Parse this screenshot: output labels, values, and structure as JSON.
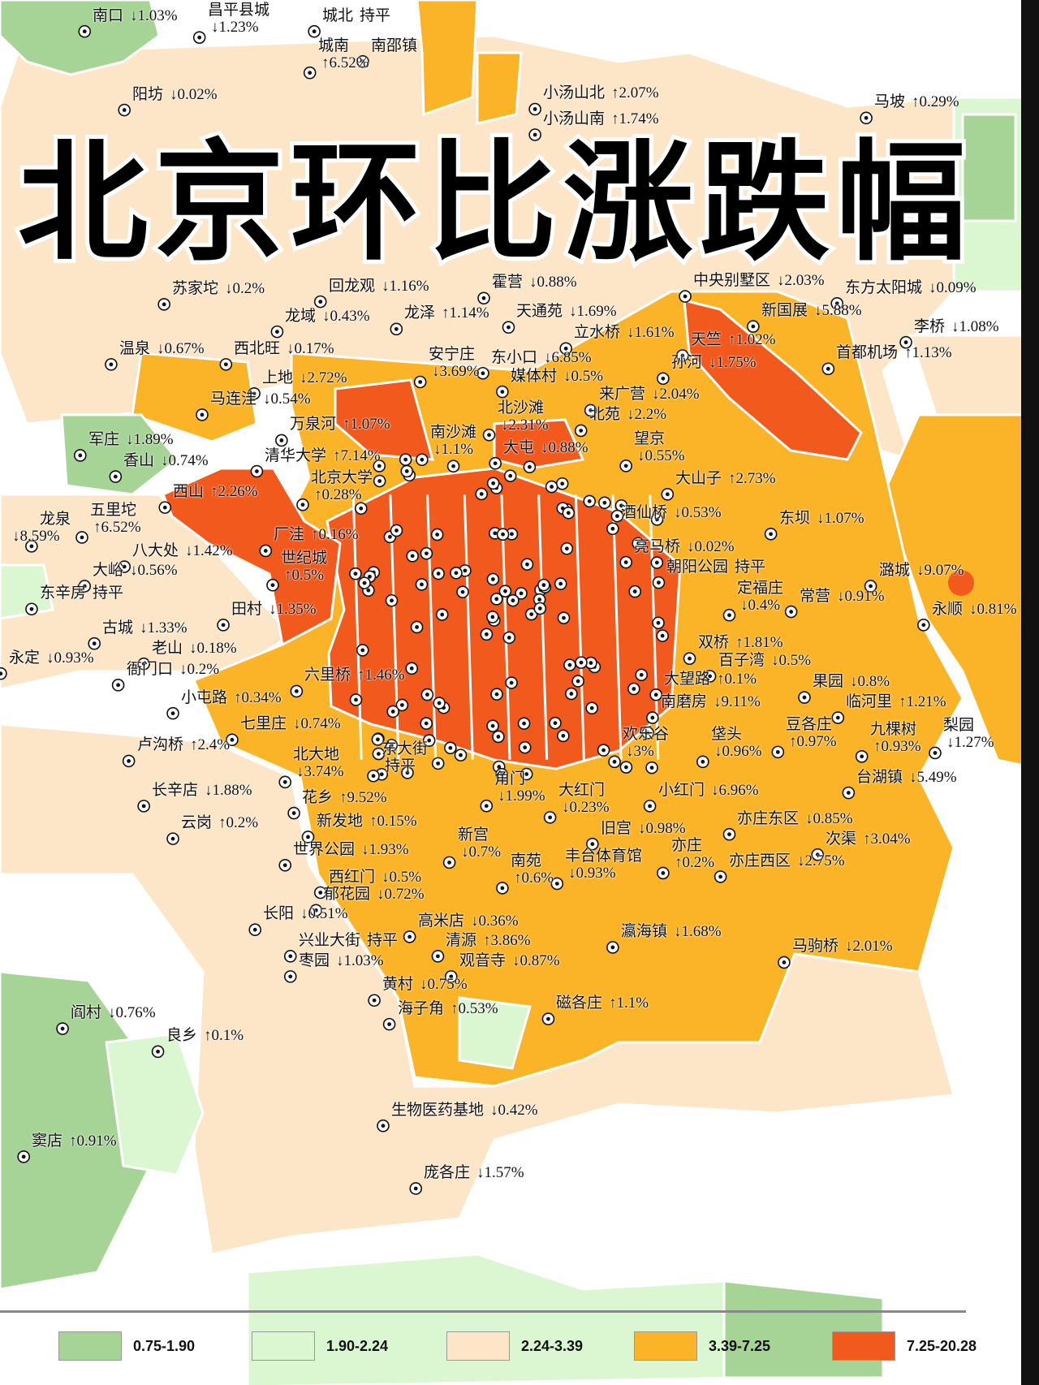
{
  "title": "北京环比涨跌幅",
  "colors": {
    "band1": "#a6d496",
    "band2": "#daf7d2",
    "band3": "#fde6c8",
    "band4": "#fbb428",
    "band5": "#f2591c",
    "marker": "#111111"
  },
  "legend": [
    {
      "label": "0.75-1.90",
      "color": "#a6d496"
    },
    {
      "label": "1.90-2.24",
      "color": "#daf7d2"
    },
    {
      "label": "2.24-3.39",
      "color": "#fde6c8"
    },
    {
      "label": "3.39-7.25",
      "color": "#fbb428"
    },
    {
      "label": "7.25-20.28",
      "color": "#f2591c"
    }
  ],
  "labels": [
    {
      "name": "南口",
      "change": "↓1.03%"
    },
    {
      "name": "昌平县城",
      "change": "↓1.23%"
    },
    {
      "name": "城北",
      "change": "持平"
    },
    {
      "name": "城南",
      "change": "↑6.52%"
    },
    {
      "name": "南邵镇",
      "change": ""
    },
    {
      "name": "阳坊",
      "change": "↓0.02%"
    },
    {
      "name": "小汤山北",
      "change": "↑2.07%"
    },
    {
      "name": "小汤山南",
      "change": "↑1.74%"
    },
    {
      "name": "马坡",
      "change": "↑0.29%"
    },
    {
      "name": "中央别墅区",
      "change": "↓2.03%"
    },
    {
      "name": "苏家坨",
      "change": "↓0.2%"
    },
    {
      "name": "回龙观",
      "change": "↓1.16%"
    },
    {
      "name": "霍营",
      "change": "↓0.88%"
    },
    {
      "name": "东方太阳城",
      "change": "↓0.09%"
    },
    {
      "name": "龙域",
      "change": "↓0.43%"
    },
    {
      "name": "龙泽",
      "change": "↑1.14%"
    },
    {
      "name": "天通苑",
      "change": "↓1.69%"
    },
    {
      "name": "新国展",
      "change": "↓5.88%"
    },
    {
      "name": "李桥",
      "change": "↓1.08%"
    },
    {
      "name": "立水桥",
      "change": "↓1.61%"
    },
    {
      "name": "天竺",
      "change": "↑1.02%"
    },
    {
      "name": "温泉",
      "change": "↓0.67%"
    },
    {
      "name": "西北旺",
      "change": "↓0.17%"
    },
    {
      "name": "安宁庄",
      "change": "↓3.69%"
    },
    {
      "name": "东小口",
      "change": "↓6.85%"
    },
    {
      "name": "首都机场",
      "change": "↑1.13%"
    },
    {
      "name": "孙河",
      "change": "↓1.75%"
    },
    {
      "name": "上地",
      "change": "↓2.72%"
    },
    {
      "name": "媒体村",
      "change": "↓0.5%"
    },
    {
      "name": "马连洼",
      "change": "↓0.54%"
    },
    {
      "name": "来广营",
      "change": "↓2.04%"
    },
    {
      "name": "北沙滩",
      "change": "↓2.31%"
    },
    {
      "name": "北苑",
      "change": "↓2.2%"
    },
    {
      "name": "万泉河",
      "change": "↑1.07%"
    },
    {
      "name": "南沙滩",
      "change": "↓1.1%"
    },
    {
      "name": "望京",
      "change": "↓0.55%"
    },
    {
      "name": "军庄",
      "change": "↓1.89%"
    },
    {
      "name": "大屯",
      "change": "↓0.88%"
    },
    {
      "name": "清华大学",
      "change": "↑7.14%"
    },
    {
      "name": "香山",
      "change": "↓0.74%"
    },
    {
      "name": "北京大学",
      "change": "↑0.28%"
    },
    {
      "name": "大山子",
      "change": "↑2.73%"
    },
    {
      "name": "西山",
      "change": "↑2.26%"
    },
    {
      "name": "五里坨",
      "change": "↑6.52%"
    },
    {
      "name": "龙泉",
      "change": "↓8.59%"
    },
    {
      "name": "酒仙桥",
      "change": "↓0.53%"
    },
    {
      "name": "东坝",
      "change": "↓1.07%"
    },
    {
      "name": "厂洼",
      "change": "↑0.16%"
    },
    {
      "name": "八大处",
      "change": "↓1.42%"
    },
    {
      "name": "亮马桥",
      "change": "↓0.02%"
    },
    {
      "name": "世纪城",
      "change": "↑0.5%"
    },
    {
      "name": "大峪",
      "change": "↓0.56%"
    },
    {
      "name": "朝阳公园",
      "change": "持平"
    },
    {
      "name": "潞城",
      "change": "↓9.07%"
    },
    {
      "name": "定福庄",
      "change": "↓0.4%"
    },
    {
      "name": "东辛房",
      "change": "持平"
    },
    {
      "name": "常营",
      "change": "↓0.91%"
    },
    {
      "name": "永顺",
      "change": "↓0.81%"
    },
    {
      "name": "田村",
      "change": "↓1.35%"
    },
    {
      "name": "古城",
      "change": "↓1.33%"
    },
    {
      "name": "双桥",
      "change": "↑1.81%"
    },
    {
      "name": "老山",
      "change": "↓0.18%"
    },
    {
      "name": "永定",
      "change": "↓0.93%"
    },
    {
      "name": "百子湾",
      "change": "↓0.5%"
    },
    {
      "name": "衙门口",
      "change": "↓0.2%"
    },
    {
      "name": "六里桥",
      "change": "↑1.46%"
    },
    {
      "name": "大望路",
      "change": "↑0.1%"
    },
    {
      "name": "果园",
      "change": "↓0.8%"
    },
    {
      "name": "小屯路",
      "change": "↑0.34%"
    },
    {
      "name": "南磨房",
      "change": "↓9.11%"
    },
    {
      "name": "临河里",
      "change": "↑1.21%"
    },
    {
      "name": "七里庄",
      "change": "↓0.74%"
    },
    {
      "name": "豆各庄",
      "change": "↑0.97%"
    },
    {
      "name": "九棵树",
      "change": "↑0.93%"
    },
    {
      "name": "梨园",
      "change": "↓1.27%"
    },
    {
      "name": "卢沟桥",
      "change": "↑2.4%"
    },
    {
      "name": "北大地",
      "change": "↓3.74%"
    },
    {
      "name": "东大街",
      "change": "持平"
    },
    {
      "name": "欢乐谷",
      "change": "↓3%"
    },
    {
      "name": "垡头",
      "change": "↓0.96%"
    },
    {
      "name": "台湖镇",
      "change": "↓5.49%"
    },
    {
      "name": "角门",
      "change": "↓1.99%"
    },
    {
      "name": "长辛店",
      "change": "↓1.88%"
    },
    {
      "name": "大红门",
      "change": "↓0.23%"
    },
    {
      "name": "小红门",
      "change": "↓6.96%"
    },
    {
      "name": "花乡",
      "change": "↑9.52%"
    },
    {
      "name": "新发地",
      "change": "↑0.15%"
    },
    {
      "name": "亦庄东区",
      "change": "↓0.85%"
    },
    {
      "name": "云岗",
      "change": "↑0.2%"
    },
    {
      "name": "旧宫",
      "change": "↓0.98%"
    },
    {
      "name": "次渠",
      "change": "↑3.04%"
    },
    {
      "name": "新宫",
      "change": "↓0.7%"
    },
    {
      "name": "世界公园",
      "change": "↓1.93%"
    },
    {
      "name": "亦庄",
      "change": "↑0.2%"
    },
    {
      "name": "南苑",
      "change": "↑0.6%"
    },
    {
      "name": "丰台体育馆",
      "change": "↓0.93%"
    },
    {
      "name": "亦庄西区",
      "change": "↓2.75%"
    },
    {
      "name": "西红门",
      "change": "↓0.5%"
    },
    {
      "name": "郁花园",
      "change": "↓0.72%"
    },
    {
      "name": "长阳",
      "change": "↓0.51%"
    },
    {
      "name": "高米店",
      "change": "↓0.36%"
    },
    {
      "name": "瀛海镇",
      "change": "↓1.68%"
    },
    {
      "name": "兴业大街",
      "change": "持平"
    },
    {
      "name": "清源",
      "change": "↑3.86%"
    },
    {
      "name": "马驹桥",
      "change": "↓2.01%"
    },
    {
      "name": "枣园",
      "change": "↓1.03%"
    },
    {
      "name": "观音寺",
      "change": "↓0.87%"
    },
    {
      "name": "黄村",
      "change": "↓0.75%"
    },
    {
      "name": "阎村",
      "change": "↓0.76%"
    },
    {
      "name": "海子角",
      "change": "↑0.53%"
    },
    {
      "name": "磁各庄",
      "change": "↑1.1%"
    },
    {
      "name": "良乡",
      "change": "↑0.1%"
    },
    {
      "name": "生物医药基地",
      "change": "↓0.42%"
    },
    {
      "name": "窦店",
      "change": "↑0.91%"
    },
    {
      "name": "庞各庄",
      "change": "↓1.57%"
    }
  ]
}
